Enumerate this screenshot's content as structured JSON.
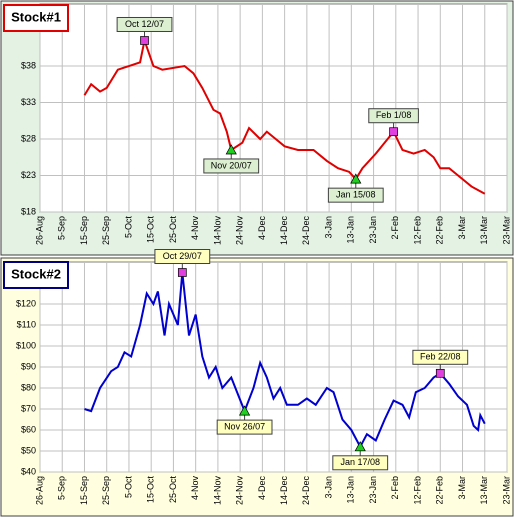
{
  "chart_data": [
    {
      "type": "line",
      "title": "Stock#1",
      "title_border": "#e00000",
      "background": "#e4f2e4",
      "color": "#e00000",
      "annotation_fill": "#dcefd0",
      "grid": true,
      "ylim": [
        18,
        46.5
      ],
      "yticks": [
        {
          "value": 18,
          "label": "$18"
        },
        {
          "value": 23,
          "label": "$23"
        },
        {
          "value": 28,
          "label": "$28"
        },
        {
          "value": 33,
          "label": "$33"
        },
        {
          "value": 38,
          "label": "$38"
        }
      ],
      "xlim": [
        "26-Aug",
        "23-Mar"
      ],
      "xticks": [
        "26-Aug",
        "5-Sep",
        "15-Sep",
        "25-Sep",
        "5-Oct",
        "15-Oct",
        "25-Oct",
        "4-Nov",
        "14-Nov",
        "24-Nov",
        "4-Dec",
        "14-Dec",
        "24-Dec",
        "3-Jan",
        "13-Jan",
        "23-Jan",
        "2-Feb",
        "12-Feb",
        "22-Feb",
        "3-Mar",
        "13-Mar",
        "23-Mar"
      ],
      "x": [
        "15-Sep",
        "18-Sep",
        "22-Sep",
        "25-Sep",
        "30-Sep",
        "5-Oct",
        "10-Oct",
        "12-Oct",
        "16-Oct",
        "20-Oct",
        "30-Oct",
        "3-Nov",
        "7-Nov",
        "12-Nov",
        "15-Nov",
        "18-Nov",
        "20-Nov",
        "25-Nov",
        "28-Nov",
        "3-Dec",
        "6-Dec",
        "10-Dec",
        "14-Dec",
        "20-Dec",
        "27-Dec",
        "2-Jan",
        "7-Jan",
        "12-Jan",
        "15-Jan",
        "18-Jan",
        "24-Jan",
        "28-Jan",
        "1-Feb",
        "5-Feb",
        "10-Feb",
        "15-Feb",
        "19-Feb",
        "22-Feb",
        "26-Feb",
        "3-Mar",
        "7-Mar",
        "10-Mar",
        "13-Mar"
      ],
      "values": [
        34,
        35.5,
        34.5,
        35,
        37.5,
        38,
        38.5,
        41.5,
        38,
        37.5,
        38,
        37,
        35,
        32,
        31.5,
        29,
        26.5,
        27.5,
        29.5,
        28,
        29,
        28,
        27,
        26.5,
        26.5,
        25,
        24,
        23.5,
        22.5,
        24,
        26,
        27.5,
        29,
        26.5,
        26,
        26.5,
        25.5,
        24,
        24,
        22.5,
        21.5,
        21,
        20.5
      ],
      "annotations": [
        {
          "label": "Oct 12/07",
          "x": "12-Oct",
          "y": 41.5,
          "marker": "square",
          "color": "#e040e0"
        },
        {
          "label": "Nov 20/07",
          "x": "20-Nov",
          "y": 26.5,
          "marker": "triangle",
          "color": "#20d020"
        },
        {
          "label": "Jan 15/08",
          "x": "15-Jan",
          "y": 22.5,
          "marker": "triangle",
          "color": "#20d020"
        },
        {
          "label": "Feb 1/08",
          "x": "1-Feb",
          "y": 29,
          "marker": "square",
          "color": "#e040e0"
        }
      ]
    },
    {
      "type": "line",
      "title": "Stock#2",
      "title_border": "#000080",
      "background": "#ffffe0",
      "color": "#0000d0",
      "annotation_fill": "#ffffc0",
      "grid": true,
      "ylim": [
        40,
        140
      ],
      "yticks": [
        {
          "value": 40,
          "label": "$40"
        },
        {
          "value": 50,
          "label": "$50"
        },
        {
          "value": 60,
          "label": "$60"
        },
        {
          "value": 70,
          "label": "$70"
        },
        {
          "value": 80,
          "label": "$80"
        },
        {
          "value": 90,
          "label": "$90"
        },
        {
          "value": 100,
          "label": "$100"
        },
        {
          "value": 110,
          "label": "$110"
        },
        {
          "value": 120,
          "label": "$120"
        }
      ],
      "xlim": [
        "26-Aug",
        "23-Mar"
      ],
      "xticks": [
        "26-Aug",
        "5-Sep",
        "15-Sep",
        "25-Sep",
        "5-Oct",
        "15-Oct",
        "25-Oct",
        "4-Nov",
        "14-Nov",
        "24-Nov",
        "4-Dec",
        "14-Dec",
        "24-Dec",
        "3-Jan",
        "13-Jan",
        "23-Jan",
        "2-Feb",
        "12-Feb",
        "22-Feb",
        "3-Mar",
        "13-Mar",
        "23-Mar"
      ],
      "x": [
        "15-Sep",
        "18-Sep",
        "22-Sep",
        "27-Sep",
        "30-Sep",
        "3-Oct",
        "6-Oct",
        "10-Oct",
        "13-Oct",
        "16-Oct",
        "18-Oct",
        "21-Oct",
        "23-Oct",
        "27-Oct",
        "29-Oct",
        "1-Nov",
        "4-Nov",
        "7-Nov",
        "10-Nov",
        "13-Nov",
        "16-Nov",
        "20-Nov",
        "26-Nov",
        "30-Nov",
        "3-Dec",
        "6-Dec",
        "9-Dec",
        "12-Dec",
        "15-Dec",
        "20-Dec",
        "24-Dec",
        "28-Dec",
        "2-Jan",
        "5-Jan",
        "9-Jan",
        "13-Jan",
        "17-Jan",
        "20-Jan",
        "24-Jan",
        "28-Jan",
        "1-Feb",
        "5-Feb",
        "8-Feb",
        "11-Feb",
        "15-Feb",
        "19-Feb",
        "22-Feb",
        "26-Feb",
        "1-Mar",
        "5-Mar",
        "8-Mar",
        "10-Mar",
        "11-Mar",
        "13-Mar"
      ],
      "values": [
        70,
        69,
        80,
        88,
        90,
        97,
        95,
        110,
        125,
        120,
        126,
        105,
        120,
        110,
        135,
        105,
        115,
        95,
        85,
        90,
        80,
        85,
        69,
        80,
        92,
        85,
        75,
        80,
        72,
        72,
        75,
        72,
        80,
        78,
        65,
        60,
        52,
        58,
        55,
        65,
        74,
        72,
        66,
        78,
        80,
        85,
        87,
        82,
        76,
        72,
        62,
        60,
        67,
        63
      ],
      "annotations": [
        {
          "label": "Oct 29/07",
          "x": "29-Oct",
          "y": 135,
          "marker": "square",
          "color": "#e040e0"
        },
        {
          "label": "Nov 26/07",
          "x": "26-Nov",
          "y": 69,
          "marker": "triangle",
          "color": "#20d020"
        },
        {
          "label": "Jan 17/08",
          "x": "17-Jan",
          "y": 52,
          "marker": "triangle",
          "color": "#20d020"
        },
        {
          "label": "Feb 22/08",
          "x": "22-Feb",
          "y": 87,
          "marker": "square",
          "color": "#e040e0"
        }
      ]
    }
  ]
}
